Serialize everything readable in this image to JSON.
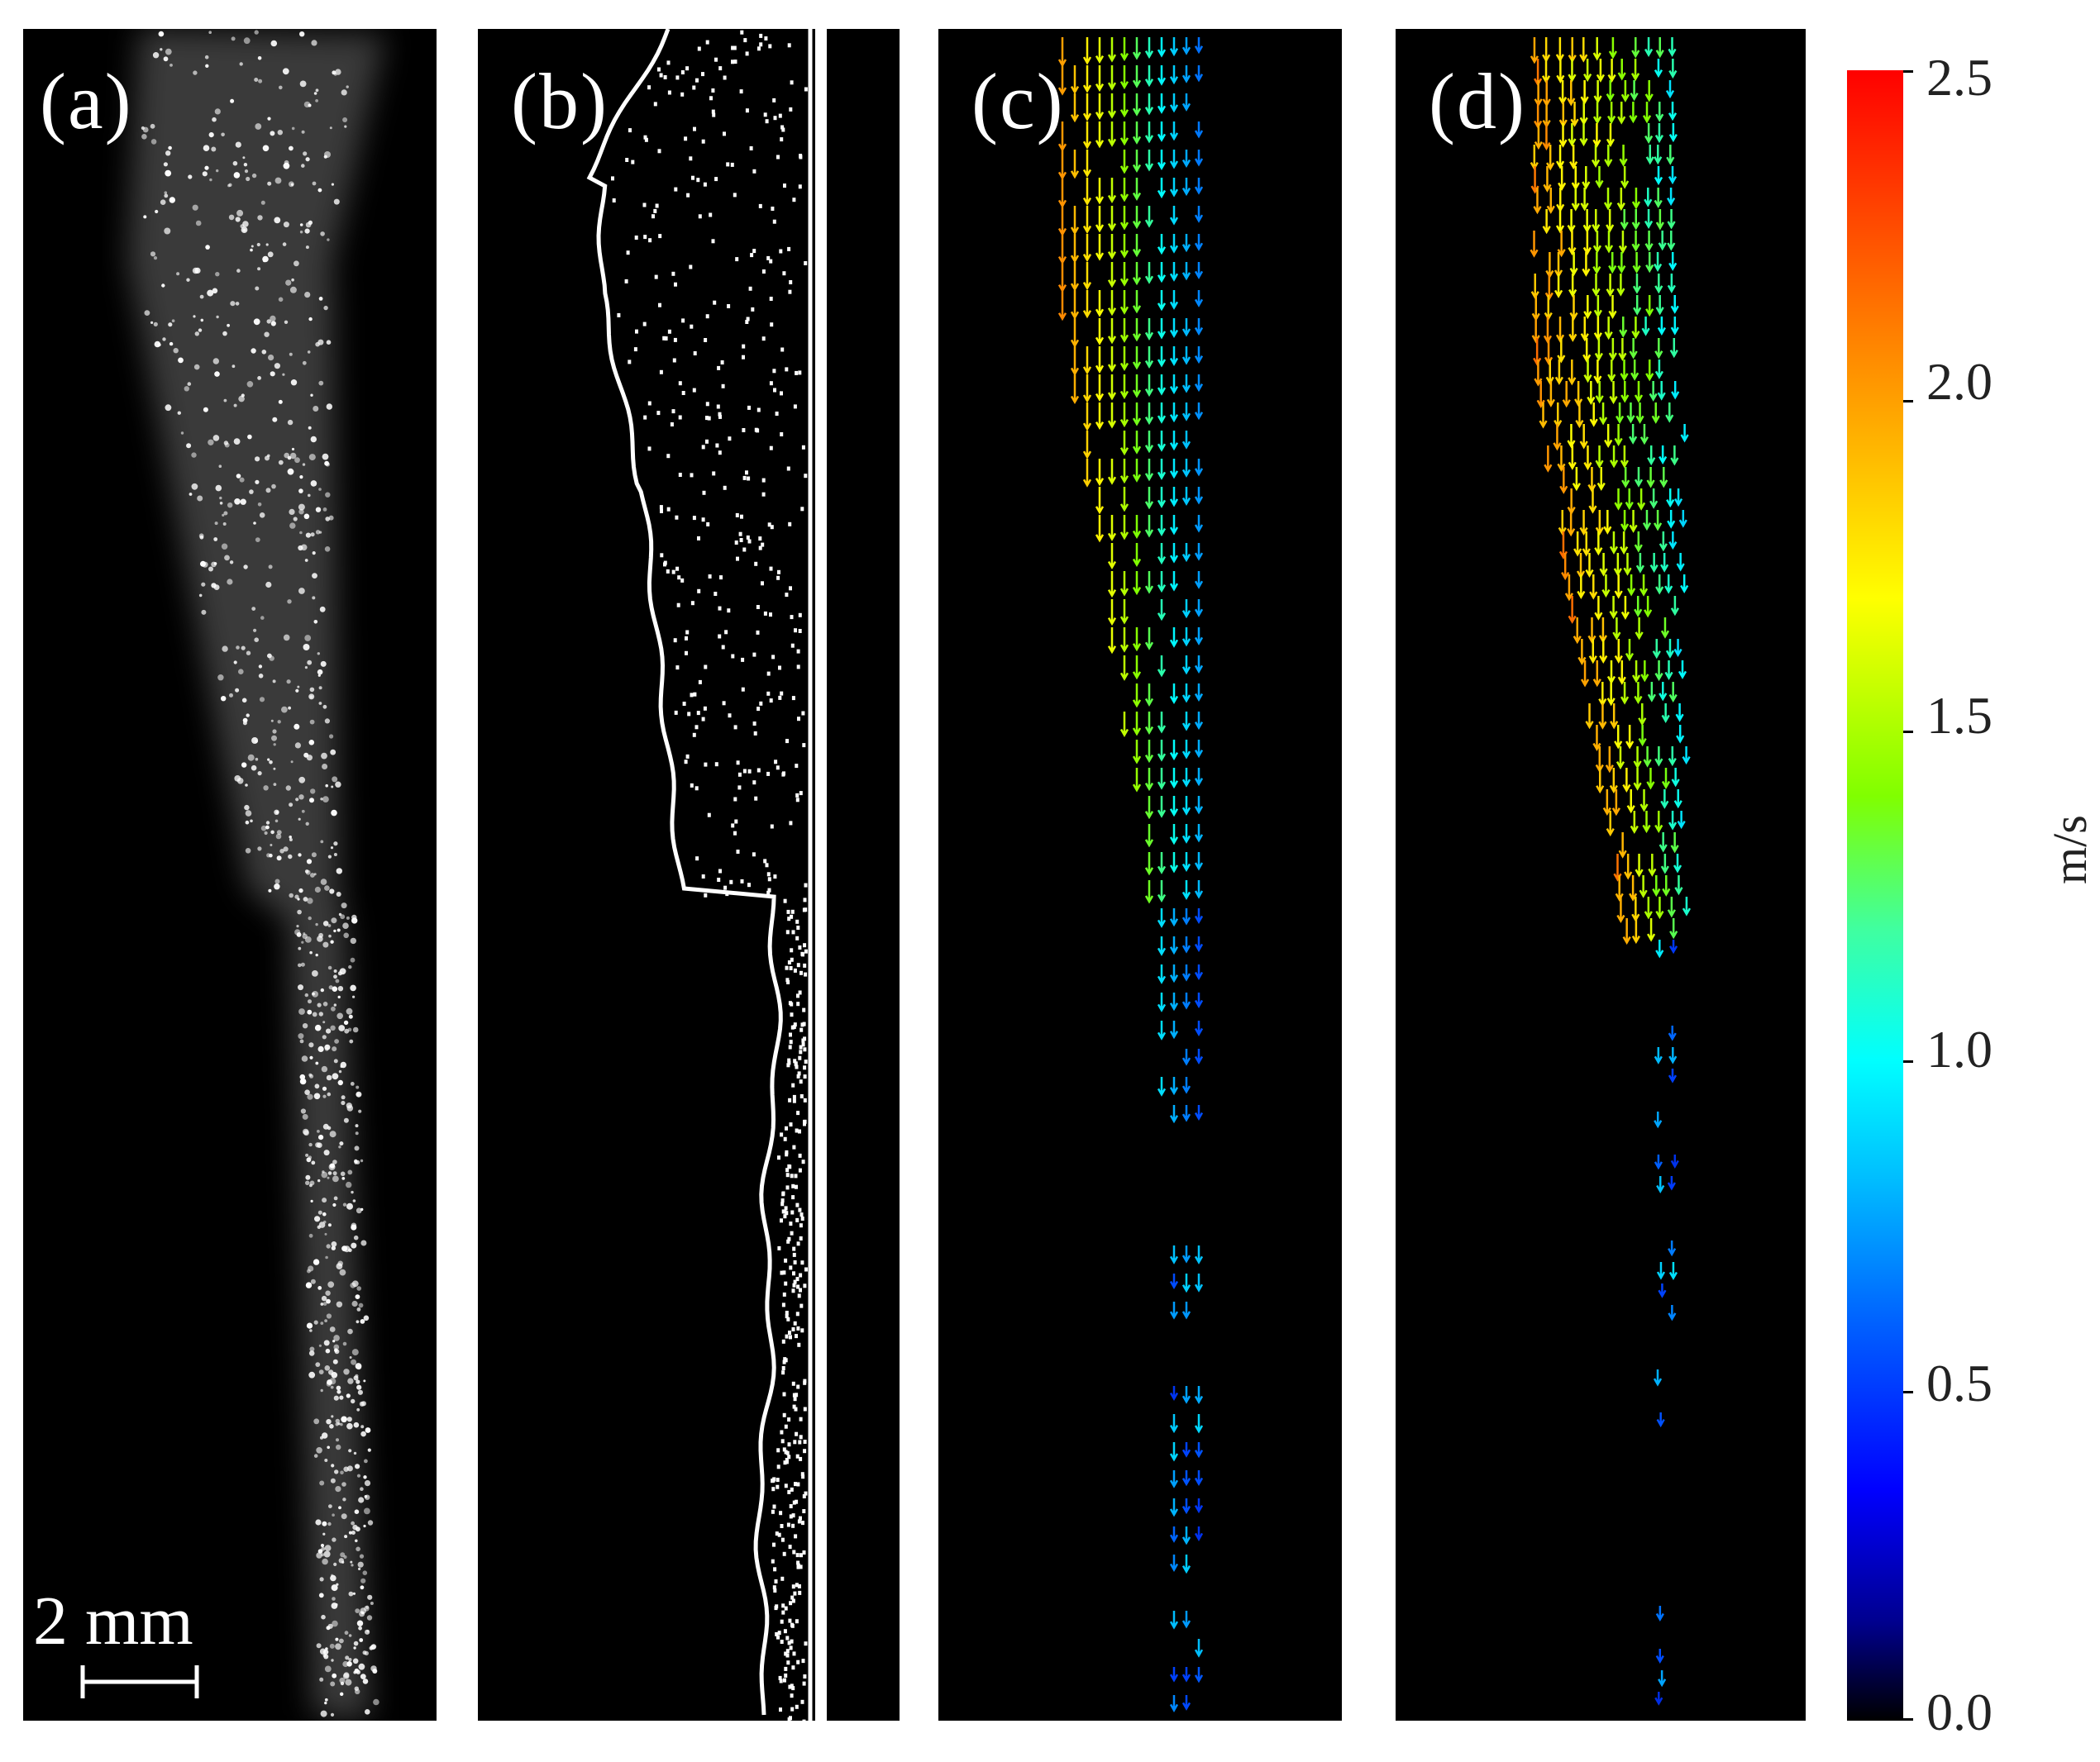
{
  "panels": {
    "a": {
      "label": "(a)",
      "scale_bar": "2 mm"
    },
    "b": {
      "label": "(b)"
    },
    "c": {
      "label": "(c)"
    },
    "d": {
      "label": "(d)"
    }
  },
  "colorbar": {
    "ticks": [
      "2.5",
      "2.0",
      "1.5",
      "1.0",
      "0.5",
      "0.0"
    ],
    "unit": "m/s",
    "range": [
      0.0,
      2.5
    ],
    "colormap": "jet",
    "colors": {
      "min": "#000000",
      "low": "#0000ff",
      "mid": "#00ffff",
      "mid_high": "#ffff00",
      "max": "#ff0000"
    }
  },
  "colors": {
    "panel_background": "#000000",
    "particles": "#ffffff",
    "outline": "#ffffff"
  }
}
